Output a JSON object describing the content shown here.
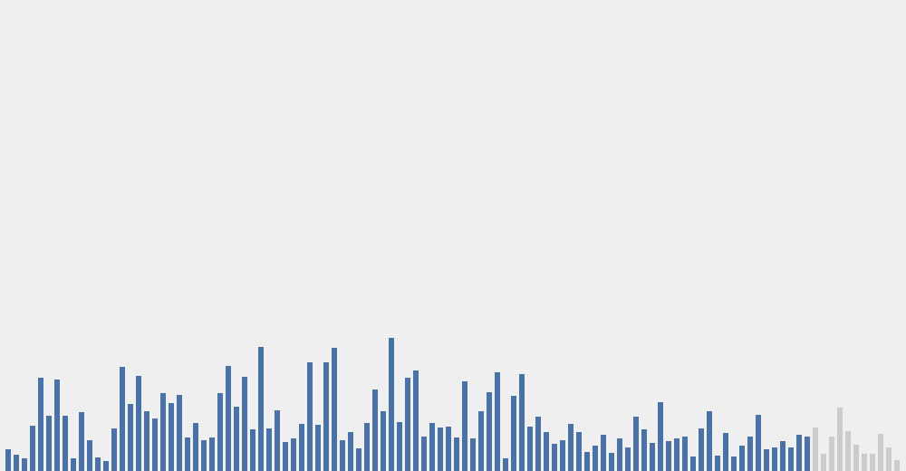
{
  "chart_data": {
    "type": "bar",
    "ylim": [
      0,
      520
    ],
    "grid": false,
    "legend": "none",
    "values": [
      24,
      18,
      14,
      50,
      103,
      61,
      101,
      61,
      14,
      65,
      34,
      15,
      11,
      47,
      115,
      74,
      105,
      66,
      58,
      86,
      75,
      84,
      37,
      53,
      34,
      37,
      86,
      116,
      71,
      104,
      46,
      137,
      47,
      67,
      32,
      36,
      52,
      120,
      51,
      120,
      136,
      34,
      43,
      25,
      53,
      90,
      66,
      147,
      54,
      103,
      111,
      38,
      53,
      48,
      49,
      37,
      99,
      36,
      66,
      87,
      109,
      14,
      83,
      107,
      49,
      60,
      43,
      30,
      34,
      52,
      43,
      21,
      28,
      40,
      20,
      36,
      26,
      60,
      46,
      31,
      76,
      33,
      36,
      38,
      16,
      47,
      66,
      17,
      42,
      16,
      28,
      38,
      62,
      24,
      26,
      33,
      26,
      40,
      38,
      48,
      19,
      38,
      70,
      44,
      29,
      19,
      19,
      41,
      26,
      12
    ],
    "highlight_count": 99
  },
  "colors": {
    "background": "#efefef",
    "highlight_bar": "#4a72a6",
    "muted_bar": "#cccccc"
  }
}
